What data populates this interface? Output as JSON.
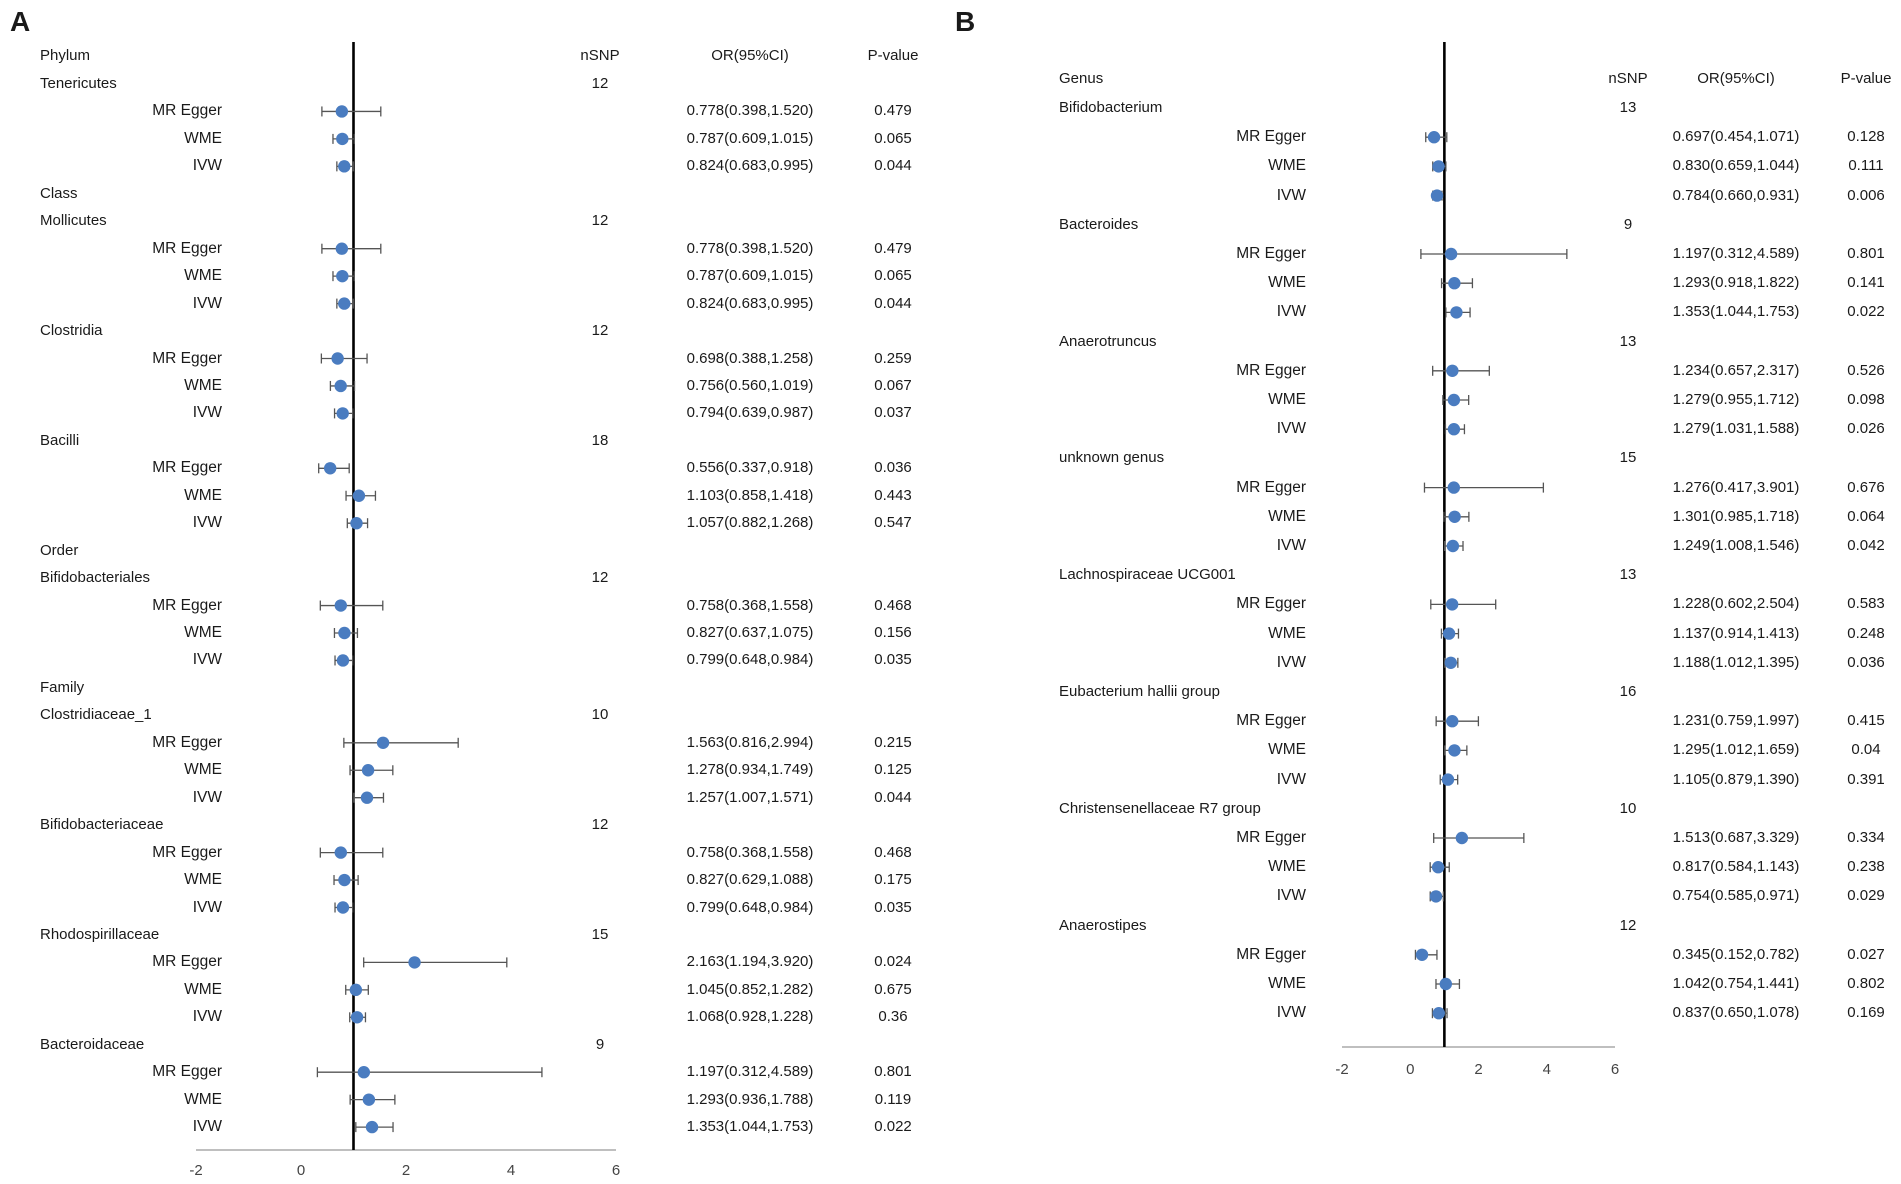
{
  "colors": {
    "point": "#4a7cc0",
    "whisker": "#555555",
    "axis": "#000000",
    "bottom_axis": "#999999"
  },
  "chart_data": [
    {
      "type": "forest",
      "panel": "A",
      "headers": {
        "label": "Phylum",
        "nsnp": "nSNP",
        "or": "OR(95%CI)",
        "p": "P-value"
      },
      "xlim": [
        -2,
        6
      ],
      "xticks": [
        "-2",
        "0",
        "2",
        "4",
        "6"
      ],
      "reference_line": 1,
      "rows": [
        {
          "kind": "group",
          "label": "Tenericutes",
          "nsnp": "12"
        },
        {
          "kind": "method",
          "label": "MR Egger",
          "or": 0.778,
          "lo": 0.398,
          "hi": 1.52,
          "or_text": "0.778(0.398,1.520)",
          "p": "0.479"
        },
        {
          "kind": "method",
          "label": "WME",
          "or": 0.787,
          "lo": 0.609,
          "hi": 1.015,
          "or_text": "0.787(0.609,1.015)",
          "p": "0.065"
        },
        {
          "kind": "method",
          "label": "IVW",
          "or": 0.824,
          "lo": 0.683,
          "hi": 0.995,
          "or_text": "0.824(0.683,0.995)",
          "p": "0.044"
        },
        {
          "kind": "rank",
          "label": "Class"
        },
        {
          "kind": "group",
          "label": "Mollicutes",
          "nsnp": "12"
        },
        {
          "kind": "method",
          "label": "MR Egger",
          "or": 0.778,
          "lo": 0.398,
          "hi": 1.52,
          "or_text": "0.778(0.398,1.520)",
          "p": "0.479"
        },
        {
          "kind": "method",
          "label": "WME",
          "or": 0.787,
          "lo": 0.609,
          "hi": 1.015,
          "or_text": "0.787(0.609,1.015)",
          "p": "0.065"
        },
        {
          "kind": "method",
          "label": "IVW",
          "or": 0.824,
          "lo": 0.683,
          "hi": 0.995,
          "or_text": "0.824(0.683,0.995)",
          "p": "0.044"
        },
        {
          "kind": "group",
          "label": "Clostridia",
          "nsnp": "12"
        },
        {
          "kind": "method",
          "label": "MR Egger",
          "or": 0.698,
          "lo": 0.388,
          "hi": 1.258,
          "or_text": "0.698(0.388,1.258)",
          "p": "0.259"
        },
        {
          "kind": "method",
          "label": "WME",
          "or": 0.756,
          "lo": 0.56,
          "hi": 1.019,
          "or_text": "0.756(0.560,1.019)",
          "p": "0.067"
        },
        {
          "kind": "method",
          "label": "IVW",
          "or": 0.794,
          "lo": 0.639,
          "hi": 0.987,
          "or_text": "0.794(0.639,0.987)",
          "p": "0.037"
        },
        {
          "kind": "group",
          "label": "Bacilli",
          "nsnp": "18"
        },
        {
          "kind": "method",
          "label": "MR Egger",
          "or": 0.556,
          "lo": 0.337,
          "hi": 0.918,
          "or_text": "0.556(0.337,0.918)",
          "p": "0.036"
        },
        {
          "kind": "method",
          "label": "WME",
          "or": 1.103,
          "lo": 0.858,
          "hi": 1.418,
          "or_text": "1.103(0.858,1.418)",
          "p": "0.443"
        },
        {
          "kind": "method",
          "label": "IVW",
          "or": 1.057,
          "lo": 0.882,
          "hi": 1.268,
          "or_text": "1.057(0.882,1.268)",
          "p": "0.547"
        },
        {
          "kind": "rank",
          "label": "Order"
        },
        {
          "kind": "group",
          "label": "Bifidobacteriales",
          "nsnp": "12"
        },
        {
          "kind": "method",
          "label": "MR Egger",
          "or": 0.758,
          "lo": 0.368,
          "hi": 1.558,
          "or_text": "0.758(0.368,1.558)",
          "p": "0.468"
        },
        {
          "kind": "method",
          "label": "WME",
          "or": 0.827,
          "lo": 0.637,
          "hi": 1.075,
          "or_text": "0.827(0.637,1.075)",
          "p": "0.156"
        },
        {
          "kind": "method",
          "label": "IVW",
          "or": 0.799,
          "lo": 0.648,
          "hi": 0.984,
          "or_text": "0.799(0.648,0.984)",
          "p": "0.035"
        },
        {
          "kind": "rank",
          "label": "Family"
        },
        {
          "kind": "group",
          "label": "Clostridiaceae_1",
          "nsnp": "10"
        },
        {
          "kind": "method",
          "label": "MR Egger",
          "or": 1.563,
          "lo": 0.816,
          "hi": 2.994,
          "or_text": "1.563(0.816,2.994)",
          "p": "0.215"
        },
        {
          "kind": "method",
          "label": "WME",
          "or": 1.278,
          "lo": 0.934,
          "hi": 1.749,
          "or_text": "1.278(0.934,1.749)",
          "p": "0.125"
        },
        {
          "kind": "method",
          "label": "IVW",
          "or": 1.257,
          "lo": 1.007,
          "hi": 1.571,
          "or_text": "1.257(1.007,1.571)",
          "p": "0.044"
        },
        {
          "kind": "group",
          "label": "Bifidobacteriaceae",
          "nsnp": "12"
        },
        {
          "kind": "method",
          "label": "MR Egger",
          "or": 0.758,
          "lo": 0.368,
          "hi": 1.558,
          "or_text": "0.758(0.368,1.558)",
          "p": "0.468"
        },
        {
          "kind": "method",
          "label": "WME",
          "or": 0.827,
          "lo": 0.629,
          "hi": 1.088,
          "or_text": "0.827(0.629,1.088)",
          "p": "0.175"
        },
        {
          "kind": "method",
          "label": "IVW",
          "or": 0.799,
          "lo": 0.648,
          "hi": 0.984,
          "or_text": "0.799(0.648,0.984)",
          "p": "0.035"
        },
        {
          "kind": "group",
          "label": "Rhodospirillaceae",
          "nsnp": "15"
        },
        {
          "kind": "method",
          "label": "MR Egger",
          "or": 2.163,
          "lo": 1.194,
          "hi": 3.92,
          "or_text": "2.163(1.194,3.920)",
          "p": "0.024"
        },
        {
          "kind": "method",
          "label": "WME",
          "or": 1.045,
          "lo": 0.852,
          "hi": 1.282,
          "or_text": "1.045(0.852,1.282)",
          "p": "0.675"
        },
        {
          "kind": "method",
          "label": "IVW",
          "or": 1.068,
          "lo": 0.928,
          "hi": 1.228,
          "or_text": "1.068(0.928,1.228)",
          "p": "0.36"
        },
        {
          "kind": "group",
          "label": "Bacteroidaceae",
          "nsnp": "9"
        },
        {
          "kind": "method",
          "label": "MR Egger",
          "or": 1.197,
          "lo": 0.312,
          "hi": 4.589,
          "or_text": "1.197(0.312,4.589)",
          "p": "0.801"
        },
        {
          "kind": "method",
          "label": "WME",
          "or": 1.293,
          "lo": 0.936,
          "hi": 1.788,
          "or_text": "1.293(0.936,1.788)",
          "p": "0.119"
        },
        {
          "kind": "method",
          "label": "IVW",
          "or": 1.353,
          "lo": 1.044,
          "hi": 1.753,
          "or_text": "1.353(1.044,1.753)",
          "p": "0.022"
        }
      ]
    },
    {
      "type": "forest",
      "panel": "B",
      "headers": {
        "label": "Genus",
        "nsnp": "nSNP",
        "or": "OR(95%CI)",
        "p": "P-value"
      },
      "xlim": [
        -2,
        6
      ],
      "xticks": [
        "-2",
        "0",
        "2",
        "4",
        "6"
      ],
      "reference_line": 1,
      "rows": [
        {
          "kind": "group",
          "label": "Bifidobacterium",
          "nsnp": "13"
        },
        {
          "kind": "method",
          "label": "MR Egger",
          "or": 0.697,
          "lo": 0.454,
          "hi": 1.071,
          "or_text": "0.697(0.454,1.071)",
          "p": "0.128"
        },
        {
          "kind": "method",
          "label": "WME",
          "or": 0.83,
          "lo": 0.659,
          "hi": 1.044,
          "or_text": "0.830(0.659,1.044)",
          "p": "0.111"
        },
        {
          "kind": "method",
          "label": "IVW",
          "or": 0.784,
          "lo": 0.66,
          "hi": 0.931,
          "or_text": "0.784(0.660,0.931)",
          "p": "0.006"
        },
        {
          "kind": "group",
          "label": "Bacteroides",
          "nsnp": "9"
        },
        {
          "kind": "method",
          "label": "MR Egger",
          "or": 1.197,
          "lo": 0.312,
          "hi": 4.589,
          "or_text": "1.197(0.312,4.589)",
          "p": "0.801"
        },
        {
          "kind": "method",
          "label": "WME",
          "or": 1.293,
          "lo": 0.918,
          "hi": 1.822,
          "or_text": "1.293(0.918,1.822)",
          "p": "0.141"
        },
        {
          "kind": "method",
          "label": "IVW",
          "or": 1.353,
          "lo": 1.044,
          "hi": 1.753,
          "or_text": "1.353(1.044,1.753)",
          "p": "0.022"
        },
        {
          "kind": "group",
          "label": "Anaerotruncus",
          "nsnp": "13"
        },
        {
          "kind": "method",
          "label": "MR Egger",
          "or": 1.234,
          "lo": 0.657,
          "hi": 2.317,
          "or_text": "1.234(0.657,2.317)",
          "p": "0.526"
        },
        {
          "kind": "method",
          "label": "WME",
          "or": 1.279,
          "lo": 0.955,
          "hi": 1.712,
          "or_text": "1.279(0.955,1.712)",
          "p": "0.098"
        },
        {
          "kind": "method",
          "label": "IVW",
          "or": 1.279,
          "lo": 1.031,
          "hi": 1.588,
          "or_text": "1.279(1.031,1.588)",
          "p": "0.026"
        },
        {
          "kind": "group",
          "label": "unknown genus",
          "nsnp": "15"
        },
        {
          "kind": "method",
          "label": "MR Egger",
          "or": 1.276,
          "lo": 0.417,
          "hi": 3.901,
          "or_text": "1.276(0.417,3.901)",
          "p": "0.676"
        },
        {
          "kind": "method",
          "label": "WME",
          "or": 1.301,
          "lo": 0.985,
          "hi": 1.718,
          "or_text": "1.301(0.985,1.718)",
          "p": "0.064"
        },
        {
          "kind": "method",
          "label": "IVW",
          "or": 1.249,
          "lo": 1.008,
          "hi": 1.546,
          "or_text": "1.249(1.008,1.546)",
          "p": "0.042"
        },
        {
          "kind": "group",
          "label": "Lachnospiraceae UCG001",
          "nsnp": "13"
        },
        {
          "kind": "method",
          "label": "MR Egger",
          "or": 1.228,
          "lo": 0.602,
          "hi": 2.504,
          "or_text": "1.228(0.602,2.504)",
          "p": "0.583"
        },
        {
          "kind": "method",
          "label": "WME",
          "or": 1.137,
          "lo": 0.914,
          "hi": 1.413,
          "or_text": "1.137(0.914,1.413)",
          "p": "0.248"
        },
        {
          "kind": "method",
          "label": "IVW",
          "or": 1.188,
          "lo": 1.012,
          "hi": 1.395,
          "or_text": "1.188(1.012,1.395)",
          "p": "0.036"
        },
        {
          "kind": "group",
          "label": "Eubacterium hallii group",
          "nsnp": "16"
        },
        {
          "kind": "method",
          "label": "MR Egger",
          "or": 1.231,
          "lo": 0.759,
          "hi": 1.997,
          "or_text": "1.231(0.759,1.997)",
          "p": "0.415"
        },
        {
          "kind": "method",
          "label": "WME",
          "or": 1.295,
          "lo": 1.012,
          "hi": 1.659,
          "or_text": "1.295(1.012,1.659)",
          "p": "0.04"
        },
        {
          "kind": "method",
          "label": "IVW",
          "or": 1.105,
          "lo": 0.879,
          "hi": 1.39,
          "or_text": "1.105(0.879,1.390)",
          "p": "0.391"
        },
        {
          "kind": "group",
          "label": "Christensenellaceae R7 group",
          "nsnp": "10"
        },
        {
          "kind": "method",
          "label": "MR Egger",
          "or": 1.513,
          "lo": 0.687,
          "hi": 3.329,
          "or_text": "1.513(0.687,3.329)",
          "p": "0.334"
        },
        {
          "kind": "method",
          "label": "WME",
          "or": 0.817,
          "lo": 0.584,
          "hi": 1.143,
          "or_text": "0.817(0.584,1.143)",
          "p": "0.238"
        },
        {
          "kind": "method",
          "label": "IVW",
          "or": 0.754,
          "lo": 0.585,
          "hi": 0.971,
          "or_text": "0.754(0.585,0.971)",
          "p": "0.029"
        },
        {
          "kind": "group",
          "label": "Anaerostipes",
          "nsnp": "12"
        },
        {
          "kind": "method",
          "label": "MR Egger",
          "or": 0.345,
          "lo": 0.152,
          "hi": 0.782,
          "or_text": "0.345(0.152,0.782)",
          "p": "0.027"
        },
        {
          "kind": "method",
          "label": "WME",
          "or": 1.042,
          "lo": 0.754,
          "hi": 1.441,
          "or_text": "1.042(0.754,1.441)",
          "p": "0.802"
        },
        {
          "kind": "method",
          "label": "IVW",
          "or": 0.837,
          "lo": 0.65,
          "hi": 1.078,
          "or_text": "0.837(0.650,1.078)",
          "p": "0.169"
        }
      ]
    }
  ]
}
